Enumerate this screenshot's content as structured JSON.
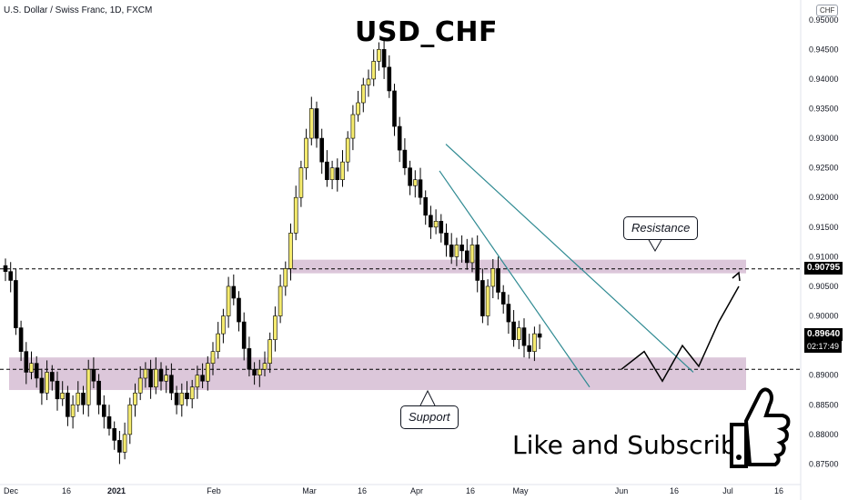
{
  "header": {
    "symbol_line": "U.S. Dollar / Swiss Franc, 1D, FXCM",
    "title": "USD_CHF",
    "currency_badge": "CHF"
  },
  "annotations": {
    "resistance_label": "Resistance",
    "support_label": "Support",
    "cta_text": "Like and Subscribe",
    "current_price": "0.89640",
    "countdown": "02:17:49",
    "resistance_level_tag": "0.90795"
  },
  "colors": {
    "bull": "#f5eb6e",
    "bear": "#000000",
    "zone": "#c9a9c6",
    "channel": "#2f8a92",
    "price_tag_bg": "#000000",
    "level_tag_bg": "#000000"
  },
  "chart_data": {
    "type": "candlestick",
    "ylim": [
      0.872,
      0.9515
    ],
    "y_ticks": [
      "0.95000",
      "0.94500",
      "0.94000",
      "0.93500",
      "0.93000",
      "0.92500",
      "0.92000",
      "0.91500",
      "0.91000",
      "0.90500",
      "0.90000",
      "0.89500",
      "0.89000",
      "0.88500",
      "0.88000",
      "0.87500"
    ],
    "x_ticks": [
      "Dec",
      "16",
      "2021",
      "Feb",
      "Mar",
      "16",
      "Apr",
      "16",
      "May",
      "Jun",
      "16",
      "Jul",
      "16"
    ],
    "zones": [
      {
        "name": "Resistance",
        "from": 0.9072,
        "to": 0.9095
      },
      {
        "name": "Support",
        "from": 0.8875,
        "to": 0.893
      }
    ],
    "levels": [
      0.90795,
      0.891
    ],
    "candles_close_path": [
      0.9075,
      0.906,
      0.898,
      0.894,
      0.8905,
      0.892,
      0.8895,
      0.887,
      0.8905,
      0.889,
      0.886,
      0.887,
      0.883,
      0.885,
      0.887,
      0.885,
      0.891,
      0.889,
      0.885,
      0.883,
      0.881,
      0.879,
      0.877,
      0.88,
      0.885,
      0.887,
      0.8895,
      0.891,
      0.888,
      0.891,
      0.889,
      0.89,
      0.887,
      0.885,
      0.887,
      0.886,
      0.888,
      0.89,
      0.889,
      0.892,
      0.894,
      0.897,
      0.9,
      0.905,
      0.903,
      0.899,
      0.8945,
      0.891,
      0.89,
      0.891,
      0.892,
      0.896,
      0.9,
      0.905,
      0.908,
      0.914,
      0.92,
      0.925,
      0.93,
      0.935,
      0.93,
      0.926,
      0.923,
      0.925,
      0.923,
      0.926,
      0.93,
      0.934,
      0.936,
      0.939,
      0.94,
      0.943,
      0.945,
      0.942,
      0.938,
      0.932,
      0.928,
      0.925,
      0.922,
      0.923,
      0.92,
      0.917,
      0.915,
      0.916,
      0.914,
      0.912,
      0.91,
      0.912,
      0.911,
      0.909,
      0.912,
      0.906,
      0.9,
      0.905,
      0.908,
      0.904,
      0.902,
      0.899,
      0.896,
      0.898,
      0.895,
      0.894,
      0.897,
      0.8964
    ],
    "projection_path": [
      0.8964,
      0.891,
      0.894,
      0.889,
      0.895,
      0.8915,
      0.899,
      0.905
    ]
  }
}
